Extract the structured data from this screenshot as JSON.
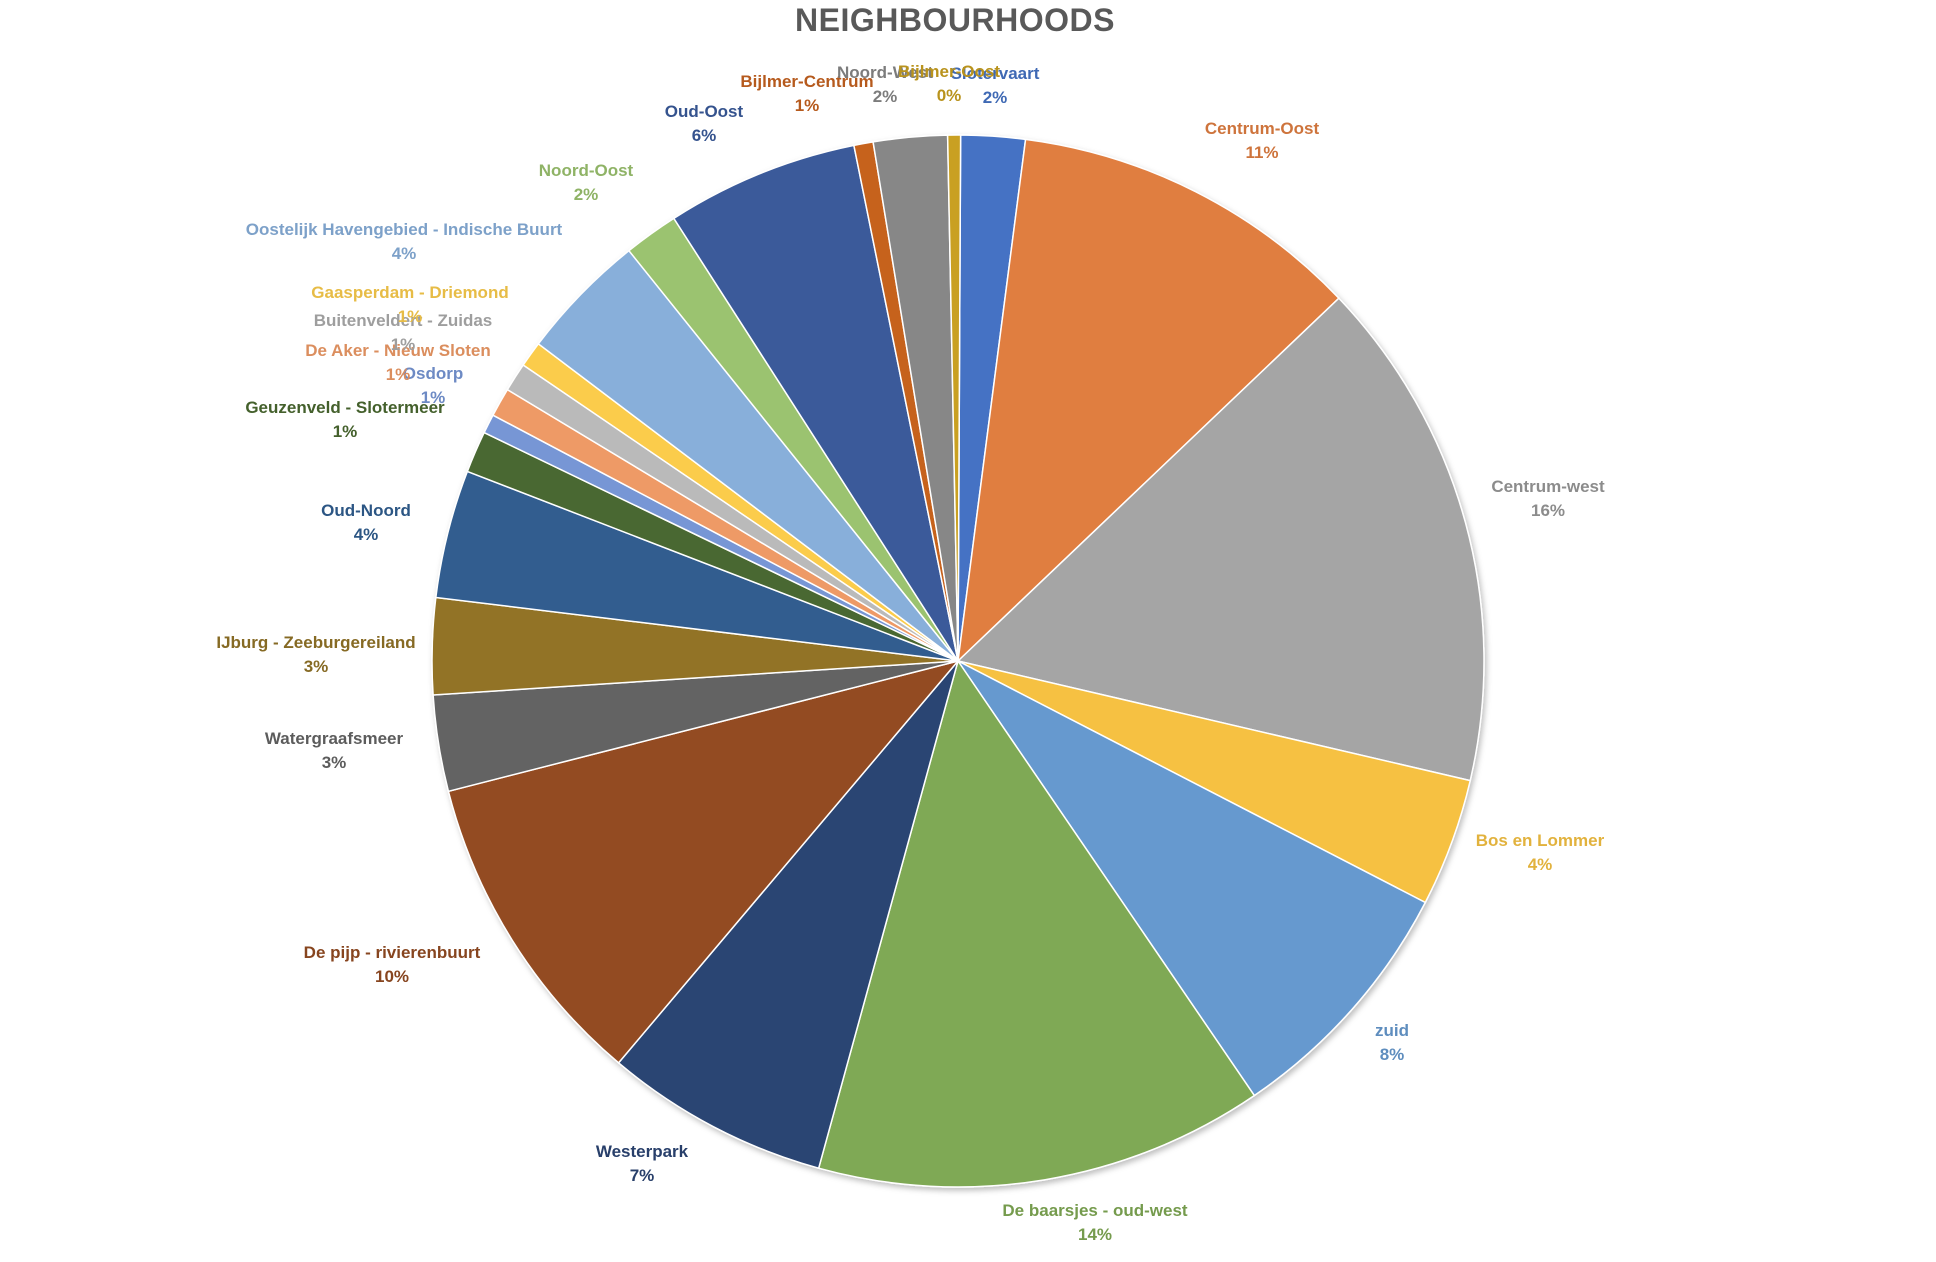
{
  "chart_data": {
    "type": "pie",
    "title": "NEIGHBOURHOODS",
    "slices": [
      {
        "name": "Slotervaart",
        "value": 2,
        "label": "2%",
        "color": "#4472C4"
      },
      {
        "name": "Centrum-Oost",
        "value": 11,
        "label": "11%",
        "color": "#E07E41"
      },
      {
        "name": "Centrum-west",
        "value": 16,
        "label": "16%",
        "color": "#A5A5A5"
      },
      {
        "name": "Bos en Lommer",
        "value": 4,
        "label": "4%",
        "color": "#F6C142"
      },
      {
        "name": "zuid",
        "value": 8,
        "label": "8%",
        "color": "#6699CF"
      },
      {
        "name": "De baarsjes - oud-west",
        "value": 14,
        "label": "14%",
        "color": "#7FA954"
      },
      {
        "name": "Westerpark",
        "value": 7,
        "label": "7%",
        "color": "#2B4573"
      },
      {
        "name": "De pijp - rivierenbuurt",
        "value": 10,
        "label": "10%",
        "color": "#934B22"
      },
      {
        "name": "Watergraafsmeer",
        "value": 3,
        "label": "3%",
        "color": "#646464"
      },
      {
        "name": "IJburg - Zeeburgereiland",
        "value": 3,
        "label": "3%",
        "color": "#927327"
      },
      {
        "name": "Oud-Noord",
        "value": 4,
        "label": "4%",
        "color": "#305D8F"
      },
      {
        "name": "Geuzenveld - Slotermeer",
        "value": 1.3,
        "label": "1%",
        "color": "#4A6830"
      },
      {
        "name": "Osdorp",
        "value": 0.6,
        "label": "1%",
        "color": "#7796D5"
      },
      {
        "name": "De Aker - Nieuw Sloten",
        "value": 0.9,
        "label": "1%",
        "color": "#EE9A66"
      },
      {
        "name": "Buitenveldert - Zuidas",
        "value": 0.9,
        "label": "1%",
        "color": "#BABABA"
      },
      {
        "name": "Gaasperdam - Driemond",
        "value": 0.8,
        "label": "1%",
        "color": "#FBCC4C"
      },
      {
        "name": "Oostelijk Havengebied - Indische Buurt",
        "value": 4,
        "label": "4%",
        "color": "#88AFDA"
      },
      {
        "name": "Noord-Oost",
        "value": 1.7,
        "label": "2%",
        "color": "#9BC36F"
      },
      {
        "name": "Oud-Oost",
        "value": 6,
        "label": "6%",
        "color": "#3A5A9A"
      },
      {
        "name": "Bijlmer-Centrum",
        "value": 0.6,
        "label": "1%",
        "color": "#C6621F"
      },
      {
        "name": "Noord-West",
        "value": 2.3,
        "label": "2%",
        "color": "#878787"
      },
      {
        "name": "Bijlmer-Oost",
        "value": 0.4,
        "label": "0%",
        "color": "#C9A020"
      }
    ],
    "legend": "none"
  }
}
